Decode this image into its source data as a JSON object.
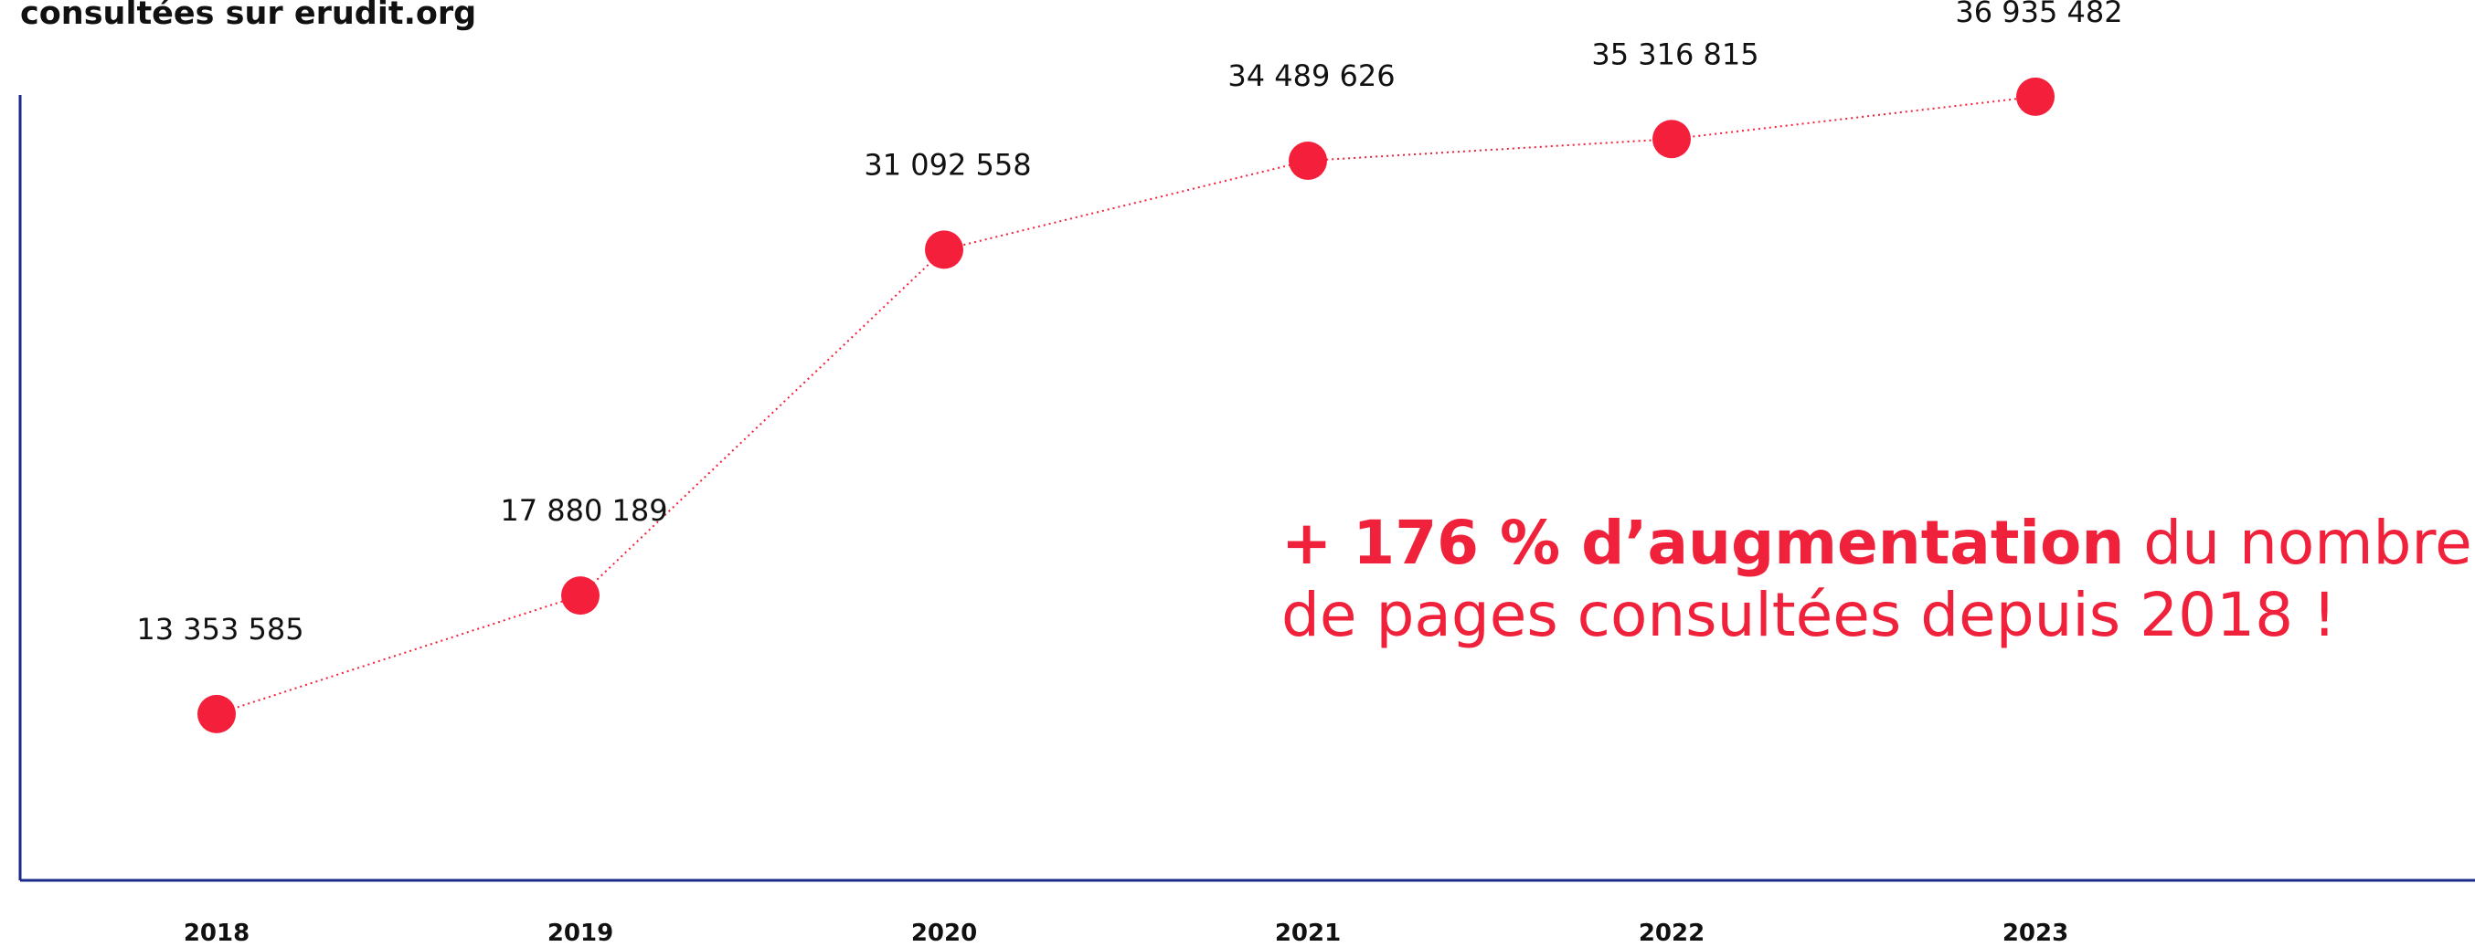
{
  "chart_data": {
    "type": "line",
    "title": "consultées sur erudit.org",
    "categories": [
      "2018",
      "2019",
      "2020",
      "2021",
      "2022",
      "2023"
    ],
    "values": [
      13353585,
      17880189,
      31092558,
      34489626,
      35316815,
      36935482
    ],
    "value_labels": [
      "13 353 585",
      "17 880 189",
      "31 092 558",
      "34 489 626",
      "35 316 815",
      "36 935 482"
    ],
    "color": "#f41f3a",
    "ylim": [
      7000000,
      37000000
    ],
    "annotation": {
      "bold": "+ 176 % d’augmentation",
      "lines": [
        " du nombre",
        "de pages consultées depuis 2018 !"
      ]
    }
  }
}
